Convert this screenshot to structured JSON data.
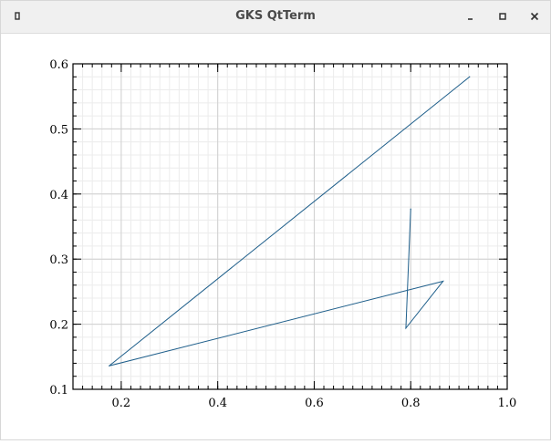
{
  "window": {
    "title": "GKS QtTerm",
    "icons": {
      "app": "app-icon",
      "minimize": "minimize-icon",
      "maximize": "maximize-icon",
      "close": "close-icon"
    }
  },
  "colors": {
    "line": "#1f5f8b",
    "grid_major": "#d0d0d0",
    "grid_minor": "#ececec",
    "frame": "#000000"
  },
  "chart_data": {
    "type": "line",
    "title": "",
    "xlabel": "",
    "ylabel": "",
    "xlim": [
      0.1,
      1.0
    ],
    "ylim": [
      0.1,
      0.6
    ],
    "grid": true,
    "xticks": [
      0.2,
      0.4,
      0.6,
      0.8,
      1.0
    ],
    "xtick_labels": [
      "0.2",
      "0.4",
      "0.6",
      "0.8",
      "1.0"
    ],
    "yticks": [
      0.1,
      0.2,
      0.3,
      0.4,
      0.5,
      0.6
    ],
    "ytick_labels": [
      "0.1",
      "0.2",
      "0.3",
      "0.4",
      "0.5",
      "0.6"
    ],
    "series": [
      {
        "x": [
          0.8,
          0.79,
          0.867,
          0.175,
          0.922
        ],
        "y": [
          0.377,
          0.194,
          0.266,
          0.136,
          0.58
        ]
      }
    ]
  }
}
